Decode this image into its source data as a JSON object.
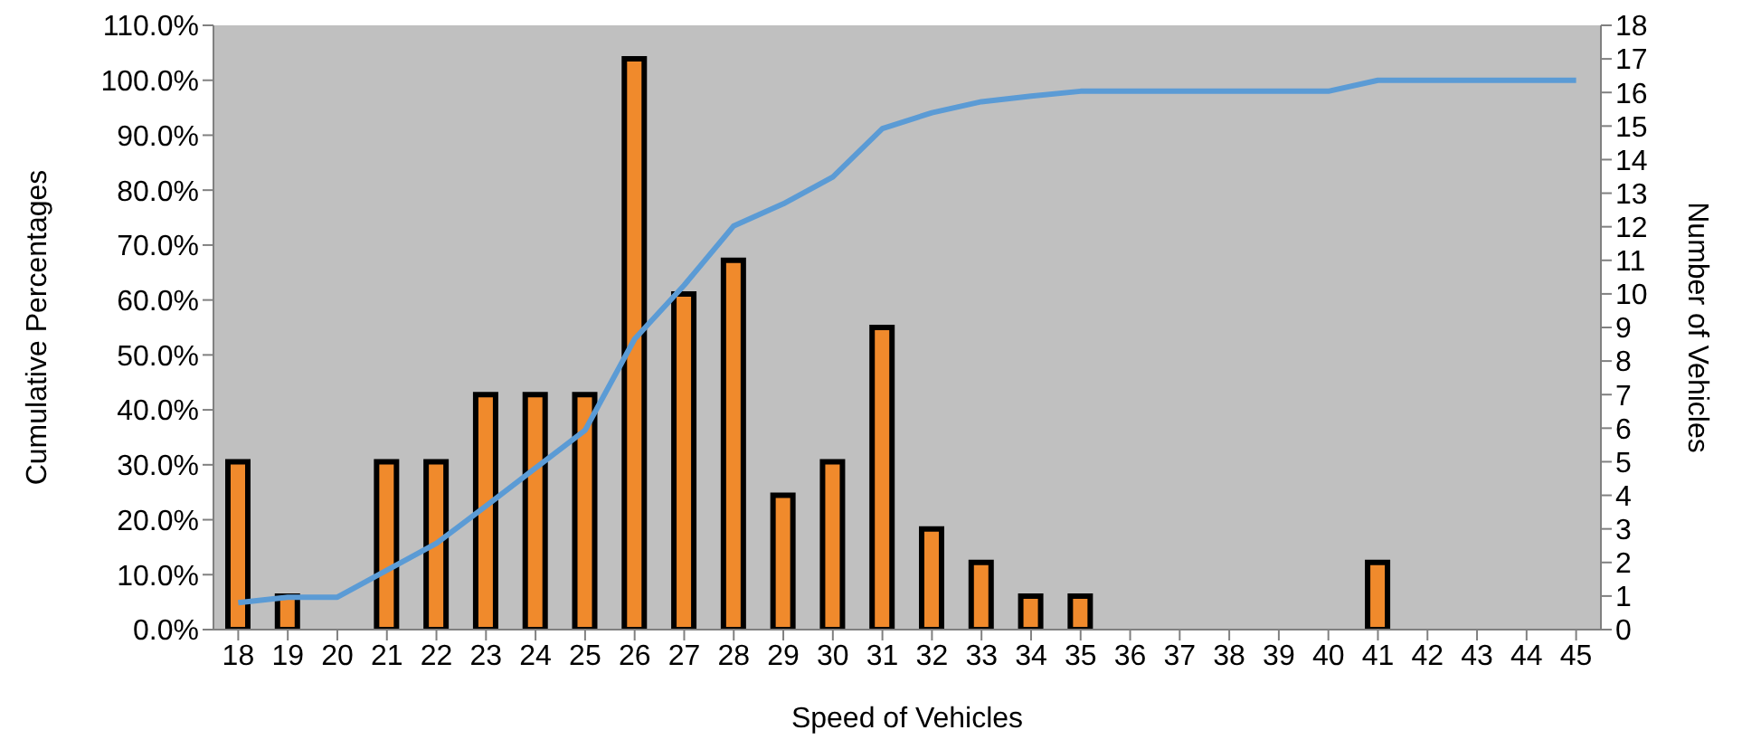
{
  "chart_data": {
    "type": "bar",
    "xlabel": "Speed of Vehicles",
    "ylabel": "Cumulative Percentages",
    "y2label": "Number of Vehicles",
    "categories": [
      "18",
      "19",
      "20",
      "21",
      "22",
      "23",
      "24",
      "25",
      "26",
      "27",
      "28",
      "29",
      "30",
      "31",
      "32",
      "33",
      "34",
      "35",
      "36",
      "37",
      "38",
      "39",
      "40",
      "41",
      "42",
      "43",
      "44",
      "45"
    ],
    "series": [
      {
        "axis": "y2",
        "color": "#f08a2c",
        "values": [
          5,
          1,
          0,
          5,
          5,
          7,
          7,
          7,
          17,
          10,
          11,
          4,
          5,
          9,
          3,
          2,
          1,
          1,
          0,
          0,
          0,
          0,
          0,
          2,
          0,
          0,
          0,
          0
        ]
      },
      {
        "type": "line",
        "axis": "y",
        "color": "#5b9bd5",
        "values": [
          4.9,
          5.9,
          5.9,
          10.8,
          15.7,
          22.5,
          29.4,
          36.3,
          52.9,
          62.7,
          73.5,
          77.5,
          82.4,
          91.2,
          94.1,
          96.1,
          97.1,
          98,
          98,
          98,
          98,
          98,
          98,
          100,
          100,
          100,
          100,
          100
        ]
      }
    ],
    "ylim": [
      0,
      110
    ],
    "yticks": [
      {
        "value": 0,
        "label": "0.0%"
      },
      {
        "value": 10,
        "label": "10.0%"
      },
      {
        "value": 20,
        "label": "20.0%"
      },
      {
        "value": 30,
        "label": "30.0%"
      },
      {
        "value": 40,
        "label": "40.0%"
      },
      {
        "value": 50,
        "label": "50.0%"
      },
      {
        "value": 60,
        "label": "60.0%"
      },
      {
        "value": 70,
        "label": "70.0%"
      },
      {
        "value": 80,
        "label": "80.0%"
      },
      {
        "value": 90,
        "label": "90.0%"
      },
      {
        "value": 100,
        "label": "100.0%"
      },
      {
        "value": 110,
        "label": "110.0%"
      }
    ],
    "y2lim": [
      0,
      18
    ],
    "y2ticks": [
      0,
      1,
      2,
      3,
      4,
      5,
      6,
      7,
      8,
      9,
      10,
      11,
      12,
      13,
      14,
      15,
      16,
      17,
      18
    ],
    "grid": false,
    "marker": "none"
  }
}
